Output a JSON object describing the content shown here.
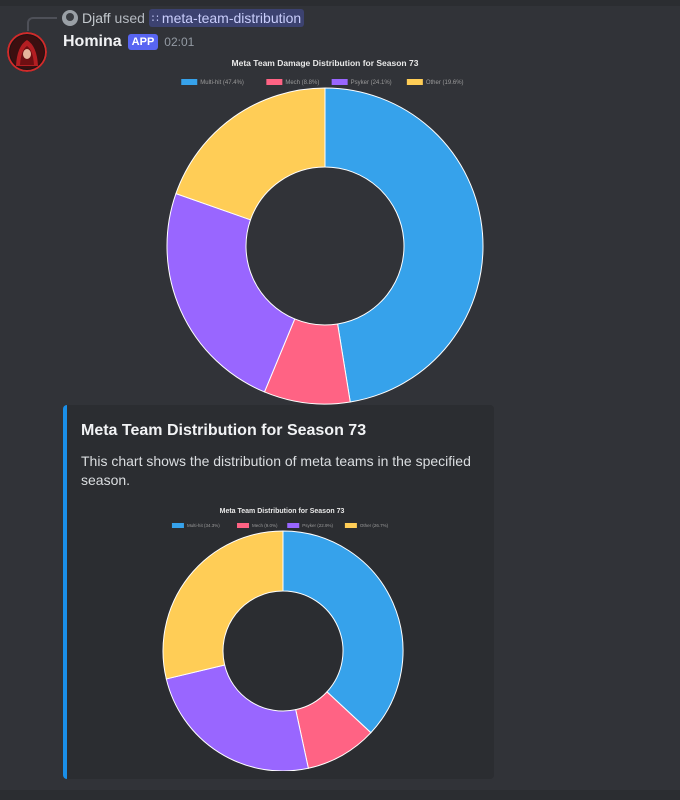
{
  "reply": {
    "user": "Djaff",
    "verb": "used",
    "command": "meta-team-distribution"
  },
  "message": {
    "author": "Homina",
    "badge": "APP",
    "time": "02:01"
  },
  "chart_main": {
    "title": "Meta Team Damage Distribution for Season 73",
    "legend": [
      "Multi-hit (47.4%)",
      "Mech (8.8%)",
      "Psyker (24.1%)",
      "Other (19.6%)"
    ]
  },
  "embed": {
    "title": "Meta Team Distribution for Season 73",
    "description": "This chart shows the distribution of meta teams in the specified season.",
    "chart_title": "Meta Team Distribution for Season 73",
    "legend": [
      "Multi-hit (34.3%)",
      "Mech (9.0%)",
      "Psyker (22.9%)",
      "Other (26.7%)"
    ]
  },
  "colors": {
    "multihit": "#36a2eb",
    "mech": "#ff6384",
    "psyker": "#9966ff",
    "other": "#ffcd56",
    "embed_accent": "#1a8fe8",
    "app_badge": "#5865f2"
  },
  "chart_data": [
    {
      "type": "pie",
      "title": "Meta Team Damage Distribution for Season 73",
      "categories": [
        "Multi-hit",
        "Mech",
        "Psyker",
        "Other"
      ],
      "values": [
        47.4,
        8.8,
        24.1,
        19.6
      ],
      "legend_position": "top",
      "colors": [
        "#36a2eb",
        "#ff6384",
        "#9966ff",
        "#ffcd56"
      ]
    },
    {
      "type": "pie",
      "title": "Meta Team Distribution for Season 73",
      "categories": [
        "Multi-hit",
        "Mech",
        "Psyker",
        "Other"
      ],
      "values": [
        34.3,
        9.0,
        22.9,
        26.7
      ],
      "legend_position": "top",
      "colors": [
        "#36a2eb",
        "#ff6384",
        "#9966ff",
        "#ffcd56"
      ]
    }
  ]
}
